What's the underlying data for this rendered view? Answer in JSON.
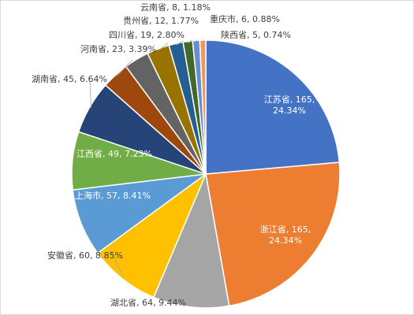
{
  "chart_data": {
    "type": "pie",
    "title": "",
    "start_angle_deg": 0,
    "direction": "clockwise",
    "slices": [
      {
        "name": "江苏省",
        "value": 165,
        "percent": "24.34%",
        "label": "江苏省, 165, 24.34%",
        "color": "#4472c4"
      },
      {
        "name": "浙江省",
        "value": 165,
        "percent": "24.34%",
        "label": "浙江省, 165, 24.34%",
        "color": "#ed7d31"
      },
      {
        "name": "湖北省",
        "value": 64,
        "percent": "9.44%",
        "label": "湖北省, 64, 9.44%",
        "color": "#a5a5a5"
      },
      {
        "name": "安徽省",
        "value": 60,
        "percent": "8.85%",
        "label": "安徽省, 60, 8.85%",
        "color": "#ffc000"
      },
      {
        "name": "上海市",
        "value": 57,
        "percent": "8.41%",
        "label": "上海市, 57, 8.41%",
        "color": "#5b9bd5"
      },
      {
        "name": "江西省",
        "value": 49,
        "percent": "7.23%",
        "label": "江西省, 49, 7.23%",
        "color": "#70ad47"
      },
      {
        "name": "湖南省",
        "value": 45,
        "percent": "6.64%",
        "label": "湖南省, 45, 6.64%",
        "color": "#264478"
      },
      {
        "name": "河南省",
        "value": 23,
        "percent": "3.39%",
        "label": "河南省, 23, 3.39%",
        "color": "#9e480e"
      },
      {
        "name": "",
        "value": 21,
        "percent": "",
        "label": "",
        "color": "#636363"
      },
      {
        "name": "四川省",
        "value": 19,
        "percent": "2.80%",
        "label": "四川省, 19, 2.80%",
        "color": "#997300"
      },
      {
        "name": "贵州省",
        "value": 12,
        "percent": "1.77%",
        "label": "贵州省, 12, 1.77%",
        "color": "#255e91"
      },
      {
        "name": "云南省",
        "value": 8,
        "percent": "1.18%",
        "label": "云南省, 8, 1.18%",
        "color": "#43682b"
      },
      {
        "name": "重庆市",
        "value": 6,
        "percent": "0.88%",
        "label": "重庆市, 6, 0.88%",
        "color": "#698ed0"
      },
      {
        "name": "陕西省",
        "value": 5,
        "percent": "0.74%",
        "label": "陕西省, 5, 0.74%",
        "color": "#f1975a"
      }
    ]
  }
}
